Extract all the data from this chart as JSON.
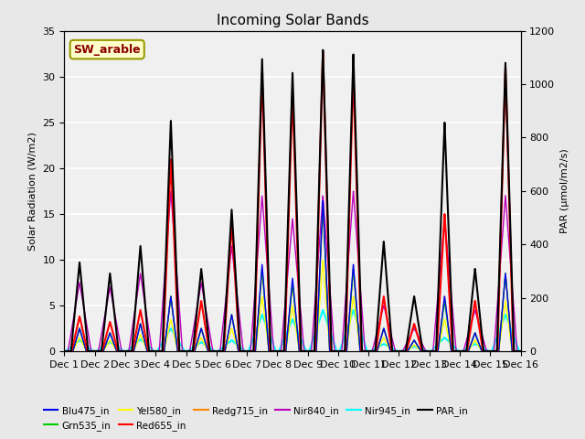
{
  "title": "Incoming Solar Bands",
  "ylabel_left": "Solar Radiation (W/m2)",
  "ylabel_right": "PAR (μmol/m2/s)",
  "xlim": [
    0,
    15
  ],
  "ylim_left": [
    0,
    35
  ],
  "ylim_right": [
    0,
    1200
  ],
  "xtick_labels": [
    "Dec 1",
    "Dec 2",
    "Dec 3",
    "Dec 4",
    "Dec 5",
    "Dec 6",
    "Dec 7",
    "Dec 8",
    "Dec 9",
    "Dec 10",
    "Dec 11",
    "Dec 12",
    "Dec 13",
    "Dec 14",
    "Dec 15",
    "Dec 16"
  ],
  "xtick_positions": [
    0,
    1,
    2,
    3,
    4,
    5,
    6,
    7,
    8,
    9,
    10,
    11,
    12,
    13,
    14,
    15
  ],
  "yticks_left": [
    0,
    5,
    10,
    15,
    20,
    25,
    30,
    35
  ],
  "yticks_right": [
    0,
    200,
    400,
    600,
    800,
    1000,
    1200
  ],
  "fig_bg": "#e8e8e8",
  "plot_bg": "#f0f0f0",
  "grid_color": "#ffffff",
  "annotation_text": "SW_arable",
  "annotation_color": "#8B0000",
  "annotation_bg": "#ffffcc",
  "annotation_border": "#999900",
  "series": {
    "Blu475_in": {
      "color": "#0000ee",
      "lw": 1.0
    },
    "Grn535_in": {
      "color": "#00cc00",
      "lw": 1.0
    },
    "Yel580_in": {
      "color": "#ffff00",
      "lw": 1.0
    },
    "Red655_in": {
      "color": "#ff0000",
      "lw": 1.5
    },
    "Redg715_in": {
      "color": "#ff8800",
      "lw": 1.0
    },
    "Nir840_in": {
      "color": "#bb00bb",
      "lw": 1.0
    },
    "Nir945_in": {
      "color": "#00ffff",
      "lw": 1.5
    },
    "PAR_in": {
      "color": "#000000",
      "lw": 1.5
    }
  },
  "day_peaks": {
    "0": {
      "PAR": 9.7,
      "Red655": 3.8,
      "Nir840": 7.5,
      "Nir945": 1.2,
      "Blu475": 2.5,
      "Grn535": 2.5,
      "Yel580": 1.5,
      "Redg715": 2.5
    },
    "1": {
      "PAR": 8.5,
      "Red655": 3.2,
      "Nir840": 7.0,
      "Nir945": 1.0,
      "Blu475": 2.0,
      "Grn535": 2.0,
      "Yel580": 1.2,
      "Redg715": 2.0
    },
    "2": {
      "PAR": 11.5,
      "Red655": 4.5,
      "Nir840": 8.5,
      "Nir945": 1.3,
      "Blu475": 3.0,
      "Grn535": 3.0,
      "Yel580": 1.8,
      "Redg715": 3.0
    },
    "3": {
      "PAR": 25.2,
      "Red655": 21.0,
      "Nir840": 17.5,
      "Nir945": 2.5,
      "Blu475": 6.0,
      "Grn535": 6.0,
      "Yel580": 3.5,
      "Redg715": 6.0
    },
    "4": {
      "PAR": 9.0,
      "Red655": 5.5,
      "Nir840": 7.5,
      "Nir945": 1.0,
      "Blu475": 2.5,
      "Grn535": 2.5,
      "Yel580": 1.5,
      "Redg715": 2.5
    },
    "5": {
      "PAR": 15.5,
      "Red655": 14.0,
      "Nir840": 11.5,
      "Nir945": 1.2,
      "Blu475": 4.0,
      "Grn535": 4.0,
      "Yel580": 2.5,
      "Redg715": 4.0
    },
    "6": {
      "PAR": 32.0,
      "Red655": 30.5,
      "Nir840": 17.0,
      "Nir945": 4.0,
      "Blu475": 9.5,
      "Grn535": 9.0,
      "Yel580": 6.0,
      "Redg715": 9.0
    },
    "7": {
      "PAR": 30.5,
      "Red655": 28.5,
      "Nir840": 14.5,
      "Nir945": 3.5,
      "Blu475": 8.0,
      "Grn535": 7.5,
      "Yel580": 5.0,
      "Redg715": 7.5
    },
    "8": {
      "PAR": 33.0,
      "Red655": 32.8,
      "Nir840": 17.0,
      "Nir945": 4.5,
      "Blu475": 16.5,
      "Grn535": 16.0,
      "Yel580": 10.0,
      "Redg715": 16.0
    },
    "9": {
      "PAR": 32.5,
      "Red655": 30.5,
      "Nir840": 17.5,
      "Nir945": 4.5,
      "Blu475": 9.5,
      "Grn535": 9.0,
      "Yel580": 6.0,
      "Redg715": 9.0
    },
    "10": {
      "PAR": 12.0,
      "Red655": 6.0,
      "Nir840": 5.0,
      "Nir945": 0.8,
      "Blu475": 2.5,
      "Grn535": 2.5,
      "Yel580": 1.5,
      "Redg715": 2.5
    },
    "11": {
      "PAR": 6.0,
      "Red655": 3.0,
      "Nir840": 2.5,
      "Nir945": 0.5,
      "Blu475": 1.2,
      "Grn535": 1.2,
      "Yel580": 0.7,
      "Redg715": 1.2
    },
    "12": {
      "PAR": 25.0,
      "Red655": 15.0,
      "Nir840": 14.5,
      "Nir945": 1.5,
      "Blu475": 6.0,
      "Grn535": 5.5,
      "Yel580": 3.5,
      "Redg715": 6.0
    },
    "13": {
      "PAR": 9.0,
      "Red655": 5.5,
      "Nir840": 4.5,
      "Nir945": 0.8,
      "Blu475": 2.0,
      "Grn535": 2.0,
      "Yel580": 1.2,
      "Redg715": 2.0
    },
    "14": {
      "PAR": 31.5,
      "Red655": 31.0,
      "Nir840": 17.0,
      "Nir945": 4.0,
      "Blu475": 8.5,
      "Grn535": 8.5,
      "Yel580": 5.5,
      "Redg715": 8.5
    }
  },
  "peak_widths": {
    "PAR": 0.28,
    "Red655": 0.26,
    "Nir840": 0.38,
    "Nir945": 0.45,
    "Blu475": 0.22,
    "Grn535": 0.22,
    "Yel580": 0.22,
    "Redg715": 0.22
  }
}
